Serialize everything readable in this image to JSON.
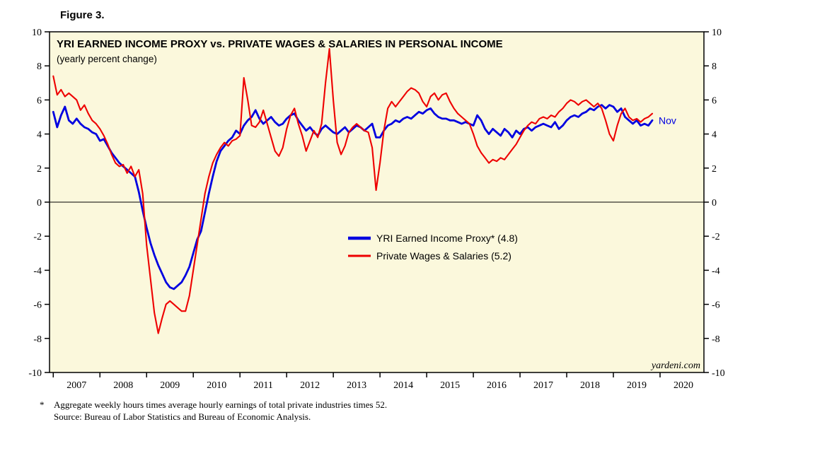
{
  "figure_label": "Figure 3.",
  "footnote": {
    "marker": "*",
    "line1": "Aggregate weekly hours times average hourly earnings of total private industries times 52.",
    "line2": "Source: Bureau of Labor Statistics and Bureau of Economic Analysis."
  },
  "chart_data": {
    "type": "line",
    "title": "YRI EARNED INCOME PROXY vs. PRIVATE WAGES & SALARIES IN PERSONAL INCOME",
    "subtitle": "(yearly percent change)",
    "xlabel": "",
    "ylabel": "",
    "ylim": [
      -10,
      10
    ],
    "x_range": [
      2006.92,
      2020.94
    ],
    "y_ticks": [
      -10,
      -8,
      -6,
      -4,
      -2,
      0,
      2,
      4,
      6,
      8,
      10
    ],
    "x_boundary_ticks": [
      2007,
      2008,
      2009,
      2010,
      2011,
      2012,
      2013,
      2014,
      2015,
      2016,
      2017,
      2018,
      2019,
      2020
    ],
    "x_year_labels": [
      2007,
      2008,
      2009,
      2010,
      2011,
      2012,
      2013,
      2014,
      2015,
      2016,
      2017,
      2018,
      2019,
      2020
    ],
    "grid": "zero-line-only",
    "legend_position": "inside-center",
    "plot_bg_color": "#FBF8DC",
    "axis_color": "#000000",
    "branding": "yardeni.com",
    "series": [
      {
        "name": "YRI Earned Income Proxy* (4.8)",
        "color": "#0000E0",
        "latest_value": 4.8,
        "last_point_label": "Nov",
        "start": 2007.0,
        "interval_months": 1,
        "values": [
          5.3,
          4.4,
          5.1,
          5.6,
          4.8,
          4.6,
          4.9,
          4.6,
          4.4,
          4.3,
          4.1,
          4.0,
          3.6,
          3.7,
          3.3,
          2.9,
          2.6,
          2.3,
          2.1,
          1.9,
          1.7,
          1.5,
          0.6,
          -0.5,
          -1.5,
          -2.4,
          -3.1,
          -3.7,
          -4.2,
          -4.7,
          -5.0,
          -5.1,
          -4.9,
          -4.7,
          -4.3,
          -3.8,
          -3.0,
          -2.2,
          -1.7,
          -0.6,
          0.5,
          1.5,
          2.4,
          3.0,
          3.3,
          3.6,
          3.8,
          4.2,
          4.0,
          4.5,
          4.8,
          5.0,
          5.4,
          4.9,
          4.6,
          4.8,
          5.0,
          4.7,
          4.5,
          4.6,
          4.9,
          5.1,
          5.2,
          4.8,
          4.5,
          4.2,
          4.4,
          4.1,
          3.9,
          4.3,
          4.5,
          4.3,
          4.1,
          4.0,
          4.2,
          4.4,
          4.1,
          4.3,
          4.5,
          4.4,
          4.2,
          4.4,
          4.6,
          3.8,
          3.8,
          4.2,
          4.5,
          4.6,
          4.8,
          4.7,
          4.9,
          5.0,
          4.9,
          5.1,
          5.3,
          5.2,
          5.4,
          5.5,
          5.2,
          5.0,
          4.9,
          4.9,
          4.8,
          4.8,
          4.7,
          4.6,
          4.7,
          4.6,
          4.5,
          5.1,
          4.8,
          4.3,
          4.0,
          4.3,
          4.1,
          3.9,
          4.3,
          4.1,
          3.8,
          4.2,
          4.0,
          4.3,
          4.4,
          4.2,
          4.4,
          4.5,
          4.6,
          4.5,
          4.4,
          4.7,
          4.3,
          4.5,
          4.8,
          5.0,
          5.1,
          5.0,
          5.2,
          5.3,
          5.5,
          5.4,
          5.6,
          5.7,
          5.5,
          5.7,
          5.6,
          5.3,
          5.5,
          5.0,
          4.8,
          4.6,
          4.8,
          4.5,
          4.6,
          4.5,
          4.8
        ]
      },
      {
        "name": "Private Wages & Salaries (5.2)",
        "color": "#EE0000",
        "latest_value": 5.2,
        "start": 2007.0,
        "interval_months": 1,
        "values": [
          7.4,
          6.3,
          6.6,
          6.2,
          6.4,
          6.2,
          6.0,
          5.4,
          5.7,
          5.2,
          4.8,
          4.6,
          4.3,
          3.9,
          3.4,
          2.8,
          2.3,
          2.1,
          2.2,
          1.7,
          2.1,
          1.5,
          1.9,
          0.5,
          -2.5,
          -4.5,
          -6.5,
          -7.7,
          -6.8,
          -6.0,
          -5.8,
          -6.0,
          -6.2,
          -6.4,
          -6.4,
          -5.5,
          -4.0,
          -2.5,
          -1.0,
          0.5,
          1.5,
          2.3,
          2.8,
          3.2,
          3.5,
          3.3,
          3.6,
          3.7,
          3.9,
          7.3,
          6.0,
          4.5,
          4.4,
          4.7,
          5.4,
          4.6,
          3.8,
          3.0,
          2.7,
          3.2,
          4.3,
          5.1,
          5.5,
          4.6,
          3.9,
          3.0,
          3.6,
          4.2,
          3.8,
          4.6,
          7.0,
          9.0,
          6.0,
          3.5,
          2.8,
          3.3,
          4.1,
          4.4,
          4.6,
          4.4,
          4.2,
          4.1,
          3.2,
          0.7,
          2.3,
          4.2,
          5.5,
          5.9,
          5.6,
          5.9,
          6.2,
          6.5,
          6.7,
          6.6,
          6.4,
          5.9,
          5.6,
          6.2,
          6.4,
          6.0,
          6.3,
          6.4,
          5.9,
          5.5,
          5.2,
          5.0,
          4.8,
          4.6,
          4.0,
          3.3,
          2.9,
          2.6,
          2.3,
          2.5,
          2.4,
          2.6,
          2.5,
          2.8,
          3.1,
          3.4,
          3.8,
          4.2,
          4.5,
          4.7,
          4.6,
          4.9,
          5.0,
          4.9,
          5.1,
          5.0,
          5.3,
          5.5,
          5.8,
          6.0,
          5.9,
          5.7,
          5.9,
          6.0,
          5.8,
          5.6,
          5.8,
          5.5,
          4.8,
          4.0,
          3.6,
          4.5,
          5.2,
          5.5,
          5.0,
          4.8,
          4.9,
          4.7,
          4.9,
          5.0,
          5.2
        ]
      }
    ]
  }
}
